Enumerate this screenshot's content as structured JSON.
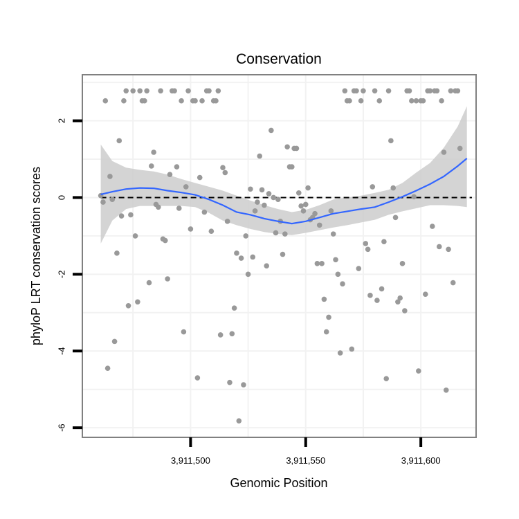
{
  "chart_data": {
    "type": "scatter",
    "title": "Conservation",
    "xlabel": "Genomic Position",
    "ylabel": "phyloP LRT conservation scores",
    "xlim": [
      3911453,
      3911624
    ],
    "ylim": [
      -6.25,
      3.2
    ],
    "x_ticks": [
      3911500,
      3911550,
      3911600
    ],
    "x_tick_labels": [
      "3,911,500",
      "3,911,550",
      "3,911,600"
    ],
    "y_ticks": [
      -6,
      -4,
      -2,
      0,
      2
    ],
    "y_tick_labels": [
      "-6",
      "-4",
      "-2",
      "0",
      "2"
    ],
    "grid": true,
    "reference_line": {
      "y": 0,
      "style": "dashed"
    },
    "colors": {
      "points": "#999999",
      "smooth_line": "#3366ff",
      "confidence_band": "#cccccc",
      "grid": "#f2f2f2",
      "panel_border": "#808080"
    },
    "points": [
      [
        3911461,
        0.05
      ],
      [
        3911462,
        -0.12
      ],
      [
        3911463,
        2.52
      ],
      [
        3911464,
        -4.45
      ],
      [
        3911465,
        0.55
      ],
      [
        3911466,
        -0.05
      ],
      [
        3911467,
        -3.75
      ],
      [
        3911468,
        -1.45
      ],
      [
        3911469,
        1.48
      ],
      [
        3911470,
        -0.48
      ],
      [
        3911471,
        2.52
      ],
      [
        3911472,
        2.78
      ],
      [
        3911473,
        -2.82
      ],
      [
        3911474,
        -0.45
      ],
      [
        3911475,
        2.78
      ],
      [
        3911476,
        -1.0
      ],
      [
        3911477,
        -2.72
      ],
      [
        3911478,
        2.78
      ],
      [
        3911479,
        2.52
      ],
      [
        3911480,
        2.52
      ],
      [
        3911481,
        2.78
      ],
      [
        3911482,
        -2.22
      ],
      [
        3911483,
        0.82
      ],
      [
        3911484,
        1.18
      ],
      [
        3911485,
        -0.18
      ],
      [
        3911486,
        -0.25
      ],
      [
        3911487,
        2.78
      ],
      [
        3911488,
        -1.08
      ],
      [
        3911489,
        -1.12
      ],
      [
        3911490,
        -2.12
      ],
      [
        3911491,
        0.6
      ],
      [
        3911492,
        2.78
      ],
      [
        3911493,
        2.78
      ],
      [
        3911494,
        0.8
      ],
      [
        3911495,
        -0.28
      ],
      [
        3911496,
        2.52
      ],
      [
        3911497,
        -3.5
      ],
      [
        3911498,
        0.28
      ],
      [
        3911499,
        2.78
      ],
      [
        3911500,
        -0.82
      ],
      [
        3911501,
        2.52
      ],
      [
        3911502,
        2.52
      ],
      [
        3911503,
        -4.7
      ],
      [
        3911504,
        0.52
      ],
      [
        3911505,
        2.52
      ],
      [
        3911506,
        -0.38
      ],
      [
        3911507,
        2.78
      ],
      [
        3911508,
        2.78
      ],
      [
        3911509,
        -0.88
      ],
      [
        3911510,
        2.52
      ],
      [
        3911511,
        2.52
      ],
      [
        3911512,
        2.78
      ],
      [
        3911513,
        -3.58
      ],
      [
        3911514,
        0.78
      ],
      [
        3911515,
        0.65
      ],
      [
        3911516,
        -0.62
      ],
      [
        3911517,
        -4.82
      ],
      [
        3911518,
        -3.55
      ],
      [
        3911519,
        -2.88
      ],
      [
        3911520,
        -1.45
      ],
      [
        3911521,
        -5.82
      ],
      [
        3911522,
        -1.58
      ],
      [
        3911523,
        -4.88
      ],
      [
        3911524,
        -1.0
      ],
      [
        3911525,
        -2.0
      ],
      [
        3911526,
        0.22
      ],
      [
        3911527,
        -1.55
      ],
      [
        3911528,
        -0.35
      ],
      [
        3911529,
        -0.12
      ],
      [
        3911530,
        1.08
      ],
      [
        3911531,
        0.2
      ],
      [
        3911532,
        -0.2
      ],
      [
        3911533,
        -1.78
      ],
      [
        3911534,
        0.1
      ],
      [
        3911535,
        1.75
      ],
      [
        3911536,
        0.0
      ],
      [
        3911537,
        -0.92
      ],
      [
        3911538,
        -0.05
      ],
      [
        3911539,
        -0.62
      ],
      [
        3911540,
        -1.48
      ],
      [
        3911541,
        -0.95
      ],
      [
        3911542,
        1.32
      ],
      [
        3911543,
        0.8
      ],
      [
        3911544,
        0.8
      ],
      [
        3911545,
        1.28
      ],
      [
        3911546,
        1.28
      ],
      [
        3911547,
        0.12
      ],
      [
        3911548,
        -0.22
      ],
      [
        3911549,
        -0.35
      ],
      [
        3911550,
        -0.18
      ],
      [
        3911551,
        0.25
      ],
      [
        3911552,
        -0.58
      ],
      [
        3911553,
        -0.52
      ],
      [
        3911554,
        -0.42
      ],
      [
        3911555,
        -1.72
      ],
      [
        3911556,
        -0.72
      ],
      [
        3911557,
        -1.72
      ],
      [
        3911558,
        -2.65
      ],
      [
        3911559,
        -3.5
      ],
      [
        3911560,
        -3.12
      ],
      [
        3911561,
        -0.35
      ],
      [
        3911562,
        -0.95
      ],
      [
        3911563,
        -1.62
      ],
      [
        3911564,
        -2.0
      ],
      [
        3911565,
        -4.05
      ],
      [
        3911566,
        -2.25
      ],
      [
        3911567,
        2.78
      ],
      [
        3911568,
        2.52
      ],
      [
        3911569,
        2.52
      ],
      [
        3911570,
        -3.95
      ],
      [
        3911571,
        2.78
      ],
      [
        3911572,
        2.78
      ],
      [
        3911573,
        -1.85
      ],
      [
        3911574,
        2.52
      ],
      [
        3911575,
        2.78
      ],
      [
        3911576,
        -1.2
      ],
      [
        3911577,
        -1.35
      ],
      [
        3911578,
        -2.55
      ],
      [
        3911579,
        0.28
      ],
      [
        3911580,
        2.78
      ],
      [
        3911581,
        -2.68
      ],
      [
        3911582,
        2.52
      ],
      [
        3911583,
        -2.38
      ],
      [
        3911584,
        -1.15
      ],
      [
        3911585,
        -4.72
      ],
      [
        3911586,
        2.78
      ],
      [
        3911587,
        1.48
      ],
      [
        3911588,
        0.25
      ],
      [
        3911589,
        -0.52
      ],
      [
        3911590,
        -2.72
      ],
      [
        3911591,
        -2.62
      ],
      [
        3911592,
        -1.72
      ],
      [
        3911593,
        -2.95
      ],
      [
        3911594,
        2.78
      ],
      [
        3911595,
        2.78
      ],
      [
        3911596,
        2.52
      ],
      [
        3911597,
        0.02
      ],
      [
        3911598,
        2.52
      ],
      [
        3911599,
        -4.52
      ],
      [
        3911600,
        2.52
      ],
      [
        3911601,
        2.52
      ],
      [
        3911602,
        -2.52
      ],
      [
        3911603,
        2.78
      ],
      [
        3911604,
        2.78
      ],
      [
        3911605,
        -0.75
      ],
      [
        3911606,
        2.78
      ],
      [
        3911607,
        2.78
      ],
      [
        3911608,
        -1.28
      ],
      [
        3911609,
        2.52
      ],
      [
        3911610,
        1.18
      ],
      [
        3911611,
        -5.02
      ],
      [
        3911612,
        -1.35
      ],
      [
        3911613,
        2.78
      ],
      [
        3911614,
        -2.22
      ],
      [
        3911615,
        2.78
      ],
      [
        3911616,
        2.78
      ],
      [
        3911617,
        1.28
      ]
    ],
    "smooth": {
      "x": [
        3911461,
        3911466,
        3911472,
        3911478,
        3911484,
        3911490,
        3911496,
        3911502,
        3911508,
        3911514,
        3911520,
        3911526,
        3911532,
        3911538,
        3911544,
        3911550,
        3911556,
        3911562,
        3911568,
        3911574,
        3911580,
        3911586,
        3911592,
        3911598,
        3911604,
        3911610,
        3911616,
        3911620
      ],
      "y": [
        0.08,
        0.15,
        0.22,
        0.25,
        0.24,
        0.18,
        0.13,
        0.07,
        -0.05,
        -0.2,
        -0.38,
        -0.45,
        -0.55,
        -0.62,
        -0.68,
        -0.62,
        -0.52,
        -0.42,
        -0.36,
        -0.3,
        -0.25,
        -0.12,
        0.02,
        0.18,
        0.35,
        0.55,
        0.82,
        1.02
      ],
      "lower": [
        -1.2,
        -0.6,
        -0.3,
        -0.22,
        -0.22,
        -0.22,
        -0.22,
        -0.25,
        -0.4,
        -0.6,
        -0.72,
        -0.82,
        -0.9,
        -0.95,
        -0.98,
        -0.92,
        -0.85,
        -0.78,
        -0.72,
        -0.65,
        -0.58,
        -0.45,
        -0.36,
        -0.28,
        -0.2,
        -0.2,
        -0.22,
        -0.25
      ],
      "upper": [
        1.38,
        0.95,
        0.78,
        0.72,
        0.68,
        0.6,
        0.48,
        0.38,
        0.28,
        0.18,
        0.05,
        -0.08,
        -0.2,
        -0.3,
        -0.38,
        -0.32,
        -0.2,
        -0.05,
        0.0,
        0.05,
        0.12,
        0.2,
        0.38,
        0.65,
        0.9,
        1.3,
        1.85,
        2.38
      ]
    }
  }
}
